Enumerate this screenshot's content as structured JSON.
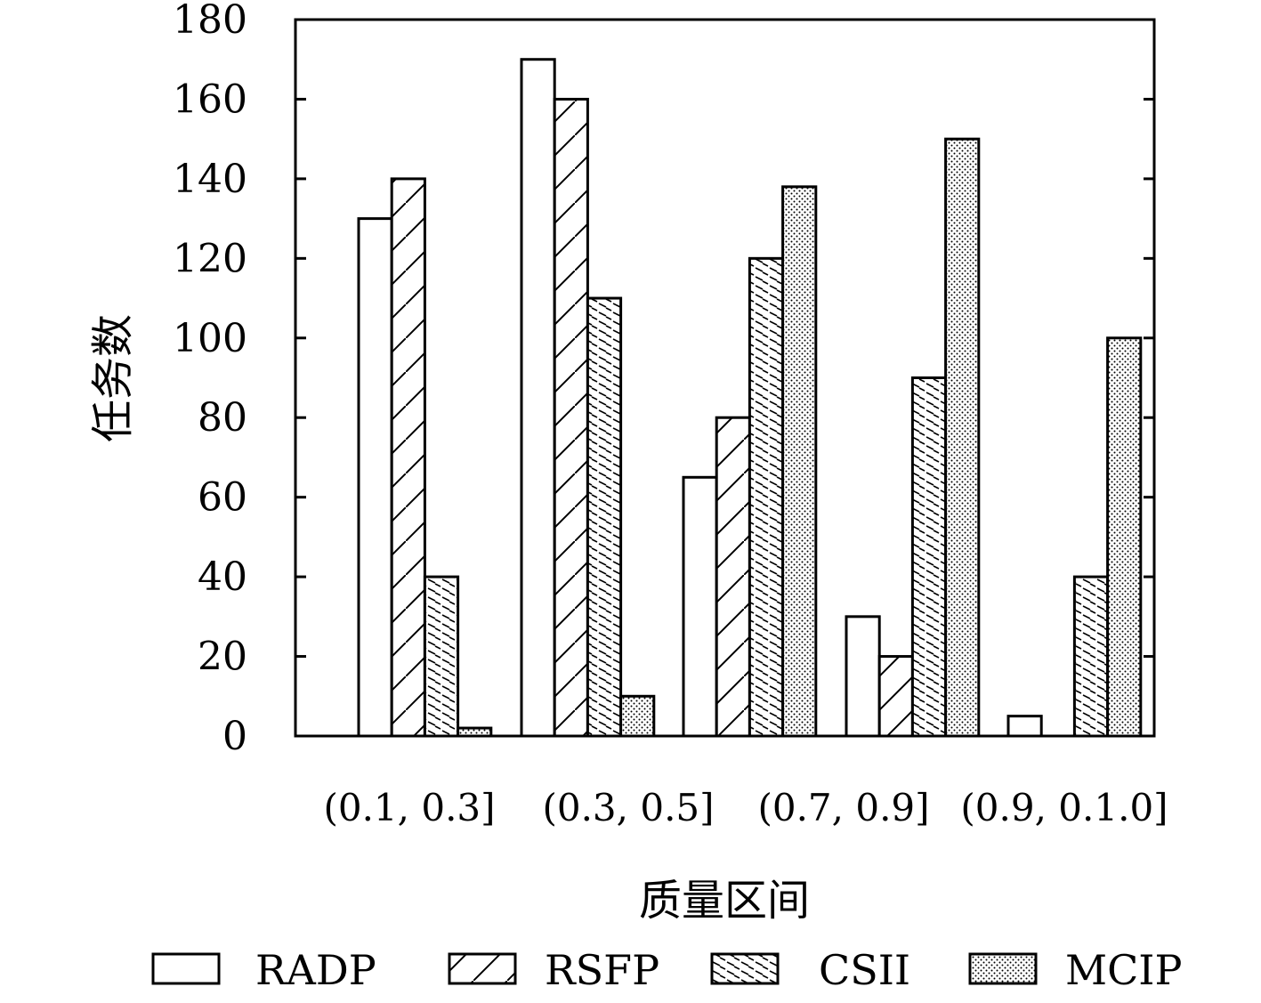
{
  "chart_data": {
    "type": "bar",
    "xlabel": "质量区间",
    "ylabel": "任务数",
    "ylim": [
      0,
      180
    ],
    "yticks": [
      "0",
      "20",
      "40",
      "60",
      "80",
      "100",
      "120",
      "140",
      "160",
      "180"
    ],
    "categories": [
      "(0.1, 0.3]",
      "(0.3, 0.5]",
      "",
      "(0.7, 0.9]",
      "(0.9, 0.1.0]"
    ],
    "series": [
      {
        "name": "RADP",
        "pattern": "none",
        "values": [
          130,
          170,
          65,
          30,
          5
        ]
      },
      {
        "name": "RSFP",
        "pattern": "diagonal",
        "values": [
          140,
          160,
          80,
          20,
          0
        ]
      },
      {
        "name": "CSII",
        "pattern": "dense-hatch",
        "values": [
          40,
          110,
          120,
          90,
          40
        ]
      },
      {
        "name": "MCIP",
        "pattern": "dots",
        "values": [
          2,
          10,
          138,
          150,
          100
        ]
      }
    ],
    "legend_position": "bottom",
    "grid": false
  }
}
